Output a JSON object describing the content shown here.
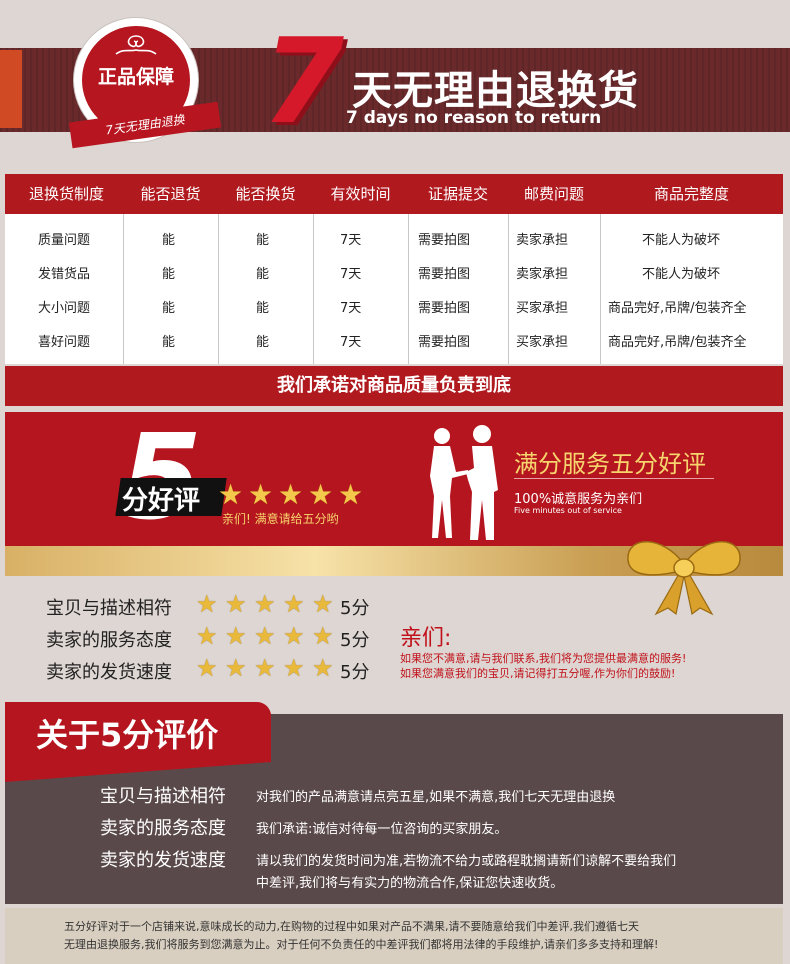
{
  "header": {
    "badge_text": "正品保障",
    "badge_ribbon": "7天无理由退换",
    "big_number": "7",
    "title": "天无理由退换货",
    "subtitle": "7 days no reason to return"
  },
  "table": {
    "headers": [
      "退换货制度",
      "能否退货",
      "能否换货",
      "有效时间",
      "证据提交",
      "邮费问题",
      "商品完整度"
    ],
    "rows": [
      [
        "质量问题",
        "能",
        "能",
        "7天",
        "需要拍图",
        "卖家承担",
        "不能人为破坏"
      ],
      [
        "发错货品",
        "能",
        "能",
        "7天",
        "需要拍图",
        "卖家承担",
        "不能人为破坏"
      ],
      [
        "大小问题",
        "能",
        "能",
        "7天",
        "需要拍图",
        "买家承担",
        "商品完好,吊牌/包装齐全"
      ],
      [
        "喜好问题",
        "能",
        "能",
        "7天",
        "需要拍图",
        "买家承担",
        "商品完好,吊牌/包装齐全"
      ]
    ],
    "promise": "我们承诺对商品质量负责到底"
  },
  "banner": {
    "big_number": "5",
    "haopin": "分好评",
    "star_count": 5,
    "note": "亲们! 满意请给五分哟",
    "title": "满分服务五分好评",
    "sub": "100%诚意服务为亲们",
    "sub_en": "Five minutes out of service",
    "colors": {
      "red": "#b5151e",
      "gold": "#f7d56e"
    }
  },
  "ratings": [
    {
      "label": "宝贝与描述相符",
      "stars": 5,
      "score": "5分"
    },
    {
      "label": "卖家的服务态度",
      "stars": 5,
      "score": "5分"
    },
    {
      "label": "卖家的发货速度",
      "stars": 5,
      "score": "5分"
    }
  ],
  "message": {
    "title": "亲们:",
    "line1": "如果您不满意,请与我们联系,我们将为您提供最满意的服务!",
    "line2": "如果您满意我们的宝贝,请记得打五分喔,作为你们的鼓励!"
  },
  "about": {
    "title": "关于5分评价",
    "items": [
      {
        "label": "宝贝与描述相符",
        "text": [
          "对我们的产品满意请点亮五星,如果不满意,我们七天无理由退换"
        ]
      },
      {
        "label": "卖家的服务态度",
        "text": [
          "我们承诺:诚信对待每一位咨询的买家朋友。"
        ]
      },
      {
        "label": "卖家的发货速度",
        "text": [
          "请以我们的发货时间为准,若物流不给力或路程耽搁请新们谅解不要给我们",
          "中差评,我们将与有实力的物流合作,保证您快速收货。"
        ]
      }
    ]
  },
  "footer": {
    "line1": "五分好评对于一个店铺来说,意味成长的动力,在购物的过程中如果对产品不满果,请不要随意给我们中差评,我们遵循七天",
    "line2": "无理由退换服务,我们将服务到您满意为止。对于任何不负责任的中差评我们都将用法律的手段维护,请亲们多多支持和理解!"
  }
}
